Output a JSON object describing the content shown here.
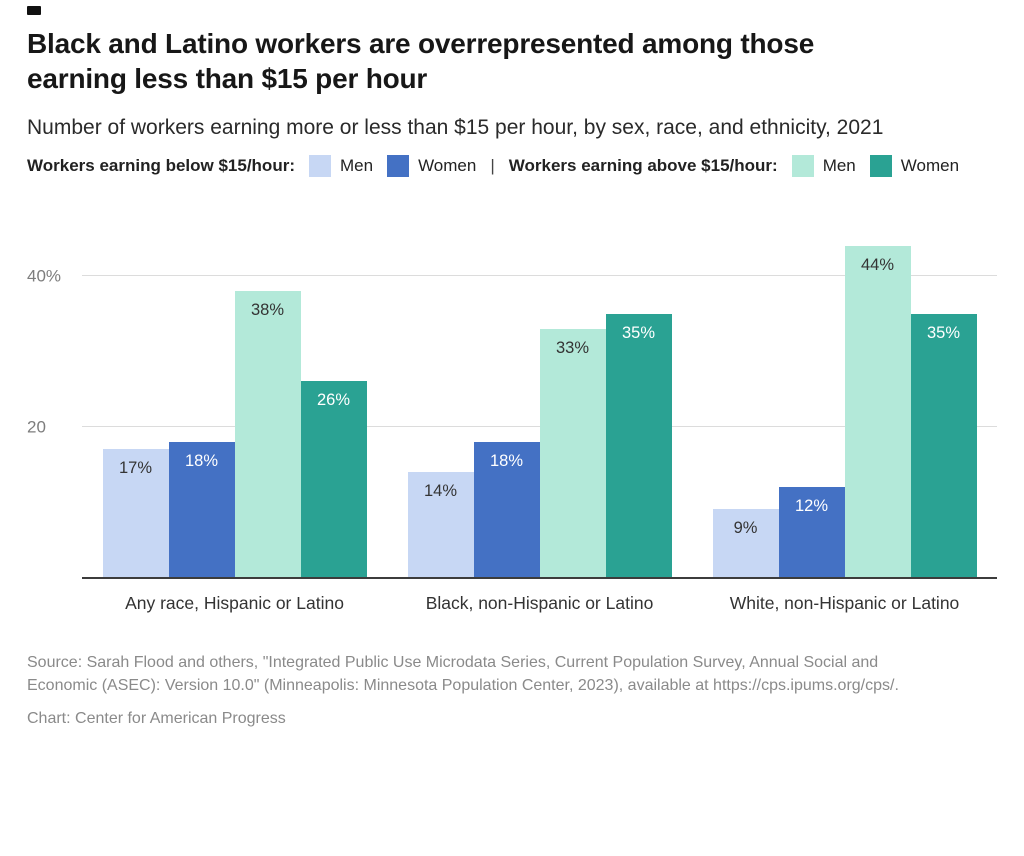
{
  "header": {
    "title": "Black and Latino workers are overrepresented among those earning less than $15 per hour",
    "subtitle": "Number of workers earning more or less than $15 per hour, by sex, race, and ethnicity, 2021"
  },
  "legend": {
    "below_title": "Workers earning below $15/hour:",
    "above_title": "Workers earning above $15/hour:",
    "divider": "|",
    "below_men": "Men",
    "below_women": "Women",
    "above_men": "Men",
    "above_women": "Women"
  },
  "chart_data": {
    "type": "bar",
    "title": "Black and Latino workers are overrepresented among those earning less than $15 per hour",
    "subtitle": "Number of workers earning more or less than $15 per hour, by sex, race, and ethnicity, 2021",
    "categories": [
      "Any race, Hispanic or Latino",
      "Black, non-Hispanic or Latino",
      "White, non-Hispanic or Latino"
    ],
    "series": [
      {
        "name": "Men earning below $15/hour",
        "color": "#c7d7f4",
        "label_color": "#343434",
        "values": [
          17,
          14,
          9
        ]
      },
      {
        "name": "Women earning below $15/hour",
        "color": "#4471c4",
        "label_color": "#ffffff",
        "values": [
          18,
          18,
          12
        ]
      },
      {
        "name": "Men earning above $15/hour",
        "color": "#b3e9d9",
        "label_color": "#343434",
        "values": [
          38,
          33,
          44
        ]
      },
      {
        "name": "Women earning above $15/hour",
        "color": "#2aa293",
        "label_color": "#ffffff",
        "values": [
          26,
          35,
          35
        ]
      }
    ],
    "value_suffix": "%",
    "y_axis": {
      "max": 46,
      "ticks": [
        {
          "value": 20,
          "label": "20"
        },
        {
          "value": 40,
          "label": "40%"
        }
      ]
    },
    "grid": true,
    "legend_position": "top",
    "xlabel": "",
    "ylabel": ""
  },
  "footer": {
    "source": "Source: Sarah Flood and others, \"Integrated Public Use Microdata Series, Current Population Survey, Annual Social and Economic (ASEC): Version 10.0\" (Minneapolis: Minnesota Population Center, 2023), available at https://cps.ipums.org/cps/.",
    "credit": "Chart: Center for American Progress"
  }
}
